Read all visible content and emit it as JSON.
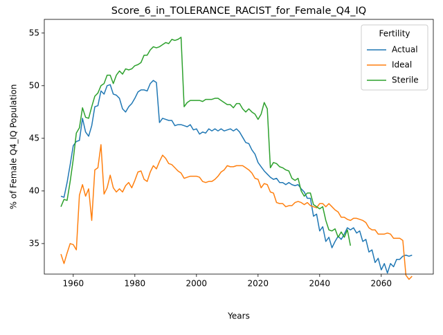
{
  "chart_data": {
    "type": "line",
    "title": "Score_6_in_TOLERANCE_RACIST_for_Female_Q4_IQ",
    "x_label": "Years",
    "y_label": "% of Female Q4_IQ Population",
    "legend_title": "Fertility",
    "legend_position": "upper right",
    "xlim": [
      1950.6,
      2076.9
    ],
    "ylim": [
      32.1,
      56.3
    ],
    "xticks": [
      1960,
      1980,
      2000,
      2020,
      2040,
      2060
    ],
    "yticks": [
      35,
      40,
      45,
      50,
      55
    ],
    "x": [
      1956,
      1957,
      1958,
      1959,
      1960,
      1961,
      1962,
      1963,
      1964,
      1965,
      1966,
      1967,
      1968,
      1969,
      1970,
      1971,
      1972,
      1973,
      1974,
      1975,
      1976,
      1977,
      1978,
      1979,
      1980,
      1981,
      1982,
      1983,
      1984,
      1985,
      1986,
      1987,
      1988,
      1989,
      1990,
      1991,
      1992,
      1993,
      1994,
      1995,
      1996,
      1997,
      1998,
      1999,
      2000,
      2001,
      2002,
      2003,
      2004,
      2005,
      2006,
      2007,
      2008,
      2009,
      2010,
      2011,
      2012,
      2013,
      2014,
      2015,
      2016,
      2017,
      2018,
      2019,
      2020,
      2021,
      2022,
      2023,
      2024,
      2025,
      2026,
      2027,
      2028,
      2029,
      2030,
      2031,
      2032,
      2033,
      2034,
      2035,
      2036,
      2037,
      2038,
      2039,
      2040,
      2041,
      2042,
      2043,
      2044,
      2045,
      2046,
      2047,
      2048,
      2049,
      2050,
      2051,
      2052,
      2053,
      2054,
      2055,
      2056,
      2057,
      2058,
      2059,
      2060,
      2061,
      2062,
      2063,
      2064,
      2065,
      2066,
      2067,
      2068,
      2069,
      2070
    ],
    "series": [
      {
        "name": "Actual",
        "color": "#1f77b4",
        "values": [
          39.5,
          39.4,
          40.8,
          42.5,
          44.3,
          44.7,
          44.8,
          46.9,
          45.6,
          45.2,
          46.2,
          48.0,
          48.1,
          49.5,
          49.2,
          50.0,
          50.1,
          49.2,
          49.1,
          48.8,
          47.8,
          47.5,
          48.0,
          48.3,
          48.8,
          49.4,
          49.6,
          49.6,
          49.5,
          50.2,
          50.5,
          50.3,
          46.5,
          46.9,
          46.8,
          46.7,
          46.7,
          46.2,
          46.3,
          46.3,
          46.2,
          46.1,
          46.3,
          45.8,
          45.9,
          45.4,
          45.6,
          45.5,
          45.9,
          45.7,
          45.9,
          45.7,
          45.9,
          45.7,
          45.8,
          45.9,
          45.7,
          45.9,
          45.6,
          45.1,
          44.6,
          44.5,
          43.9,
          43.5,
          42.7,
          42.3,
          41.9,
          41.6,
          41.3,
          41.1,
          41.2,
          40.8,
          40.8,
          40.6,
          40.8,
          40.6,
          40.5,
          40.6,
          40.2,
          39.9,
          39.3,
          39.3,
          37.6,
          37.8,
          36.2,
          36.6,
          35.2,
          35.6,
          34.6,
          35.2,
          35.7,
          35.4,
          35.9,
          36.5,
          36.3,
          36.5,
          36.0,
          36.2,
          35.2,
          35.4,
          34.2,
          34.4,
          33.2,
          33.6,
          32.5,
          33.1,
          32.2,
          33.1,
          32.8,
          33.5,
          33.5,
          33.8,
          33.9,
          33.8,
          33.9
        ]
      },
      {
        "name": "Ideal",
        "color": "#ff7f0e",
        "values": [
          34.0,
          33.1,
          34.1,
          35.0,
          34.9,
          34.4,
          39.6,
          40.6,
          39.5,
          40.2,
          37.2,
          42.0,
          42.2,
          44.4,
          39.7,
          40.3,
          41.5,
          40.3,
          39.9,
          40.2,
          39.9,
          40.5,
          40.8,
          40.3,
          41.0,
          41.8,
          41.9,
          41.1,
          40.9,
          41.8,
          42.4,
          42.1,
          42.8,
          43.4,
          43.1,
          42.6,
          42.5,
          42.2,
          41.9,
          41.7,
          41.2,
          41.3,
          41.4,
          41.4,
          41.4,
          41.3,
          40.9,
          40.8,
          40.9,
          40.9,
          41.1,
          41.4,
          41.8,
          42.0,
          42.4,
          42.3,
          42.3,
          42.4,
          42.4,
          42.4,
          42.2,
          42.0,
          41.7,
          41.2,
          41.1,
          40.3,
          40.7,
          40.6,
          39.9,
          39.8,
          38.9,
          38.8,
          38.8,
          38.5,
          38.6,
          38.6,
          38.9,
          39.0,
          38.9,
          38.7,
          38.9,
          38.6,
          38.5,
          38.4,
          38.8,
          38.8,
          38.5,
          38.8,
          38.5,
          38.2,
          38.0,
          37.5,
          37.5,
          37.3,
          37.2,
          37.4,
          37.4,
          37.3,
          37.2,
          37.0,
          36.5,
          36.3,
          36.3,
          35.9,
          35.9,
          35.9,
          36.0,
          35.9,
          35.5,
          35.5,
          35.5,
          35.3,
          32.0,
          31.6,
          31.9
        ]
      },
      {
        "name": "Sterile",
        "color": "#2ca02c",
        "values": [
          38.5,
          39.2,
          39.1,
          40.9,
          43.0,
          45.5,
          46.0,
          47.9,
          47.0,
          46.9,
          48.0,
          49.0,
          49.3,
          50.0,
          50.2,
          51.0,
          51.0,
          50.2,
          51.0,
          51.4,
          51.1,
          51.6,
          51.5,
          51.6,
          51.9,
          52.0,
          52.2,
          52.9,
          52.9,
          53.4,
          53.7,
          53.6,
          53.7,
          53.9,
          54.1,
          54.0,
          54.4,
          54.3,
          54.4,
          54.6,
          48.0,
          48.4,
          48.6,
          48.6,
          48.6,
          48.6,
          48.5,
          48.7,
          48.7,
          48.7,
          48.8,
          48.8,
          48.6,
          48.4,
          48.2,
          48.2,
          47.9,
          48.3,
          48.3,
          47.8,
          47.5,
          47.8,
          47.5,
          47.3,
          46.8,
          47.3,
          48.4,
          47.8,
          42.2,
          42.7,
          42.6,
          42.3,
          42.2,
          42.0,
          41.9,
          41.2,
          41.0,
          41.2,
          40.0,
          39.5,
          39.8,
          39.8,
          38.7,
          38.5,
          38.3,
          38.5,
          37.2,
          36.3,
          36.2,
          36.4,
          35.6,
          36.1,
          35.6,
          36.3,
          34.8,
          null,
          null,
          null,
          null,
          null,
          null,
          null,
          null,
          null,
          null,
          null,
          null,
          null,
          null,
          null,
          null,
          null,
          null,
          null,
          null
        ]
      }
    ]
  }
}
